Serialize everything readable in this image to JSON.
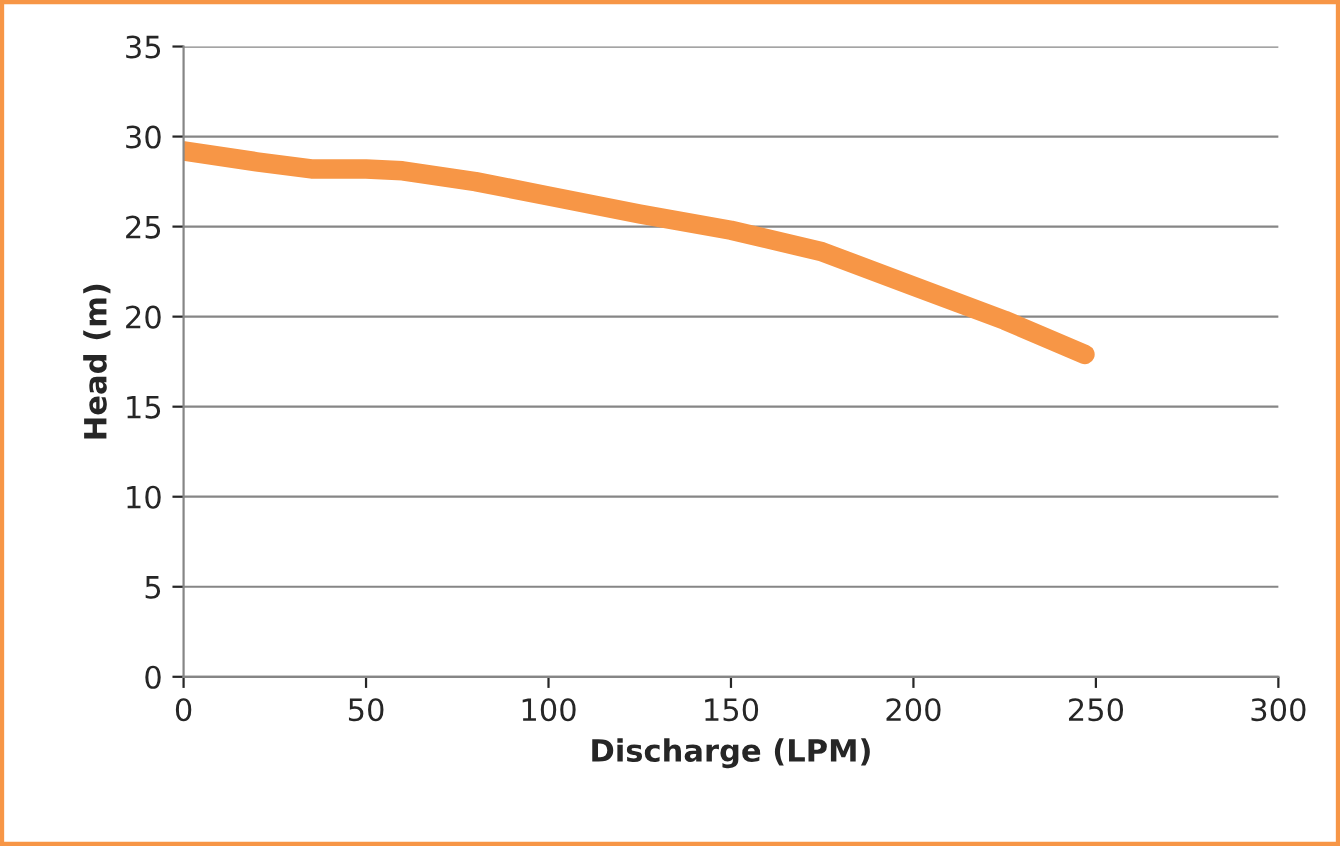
{
  "chart_data": {
    "type": "line",
    "xlabel": "Discharge (LPM)",
    "ylabel": "Head (m)",
    "series": [
      {
        "color": "#f79646",
        "x": [
          0,
          20,
          35,
          50,
          60,
          80,
          100,
          125,
          150,
          175,
          200,
          225,
          247
        ],
        "values": [
          29.2,
          28.6,
          28.2,
          28.2,
          28.1,
          27.5,
          26.7,
          25.7,
          24.8,
          23.6,
          21.7,
          19.8,
          17.9
        ]
      }
    ],
    "xlim": [
      0,
      300
    ],
    "xticks": [
      0,
      50,
      100,
      150,
      200,
      250,
      300
    ],
    "ylim": [
      0,
      35
    ],
    "yticks": [
      0,
      5,
      10,
      15,
      20,
      25,
      30,
      35
    ],
    "grid": "y",
    "line_style": "solid",
    "marker": "none"
  }
}
